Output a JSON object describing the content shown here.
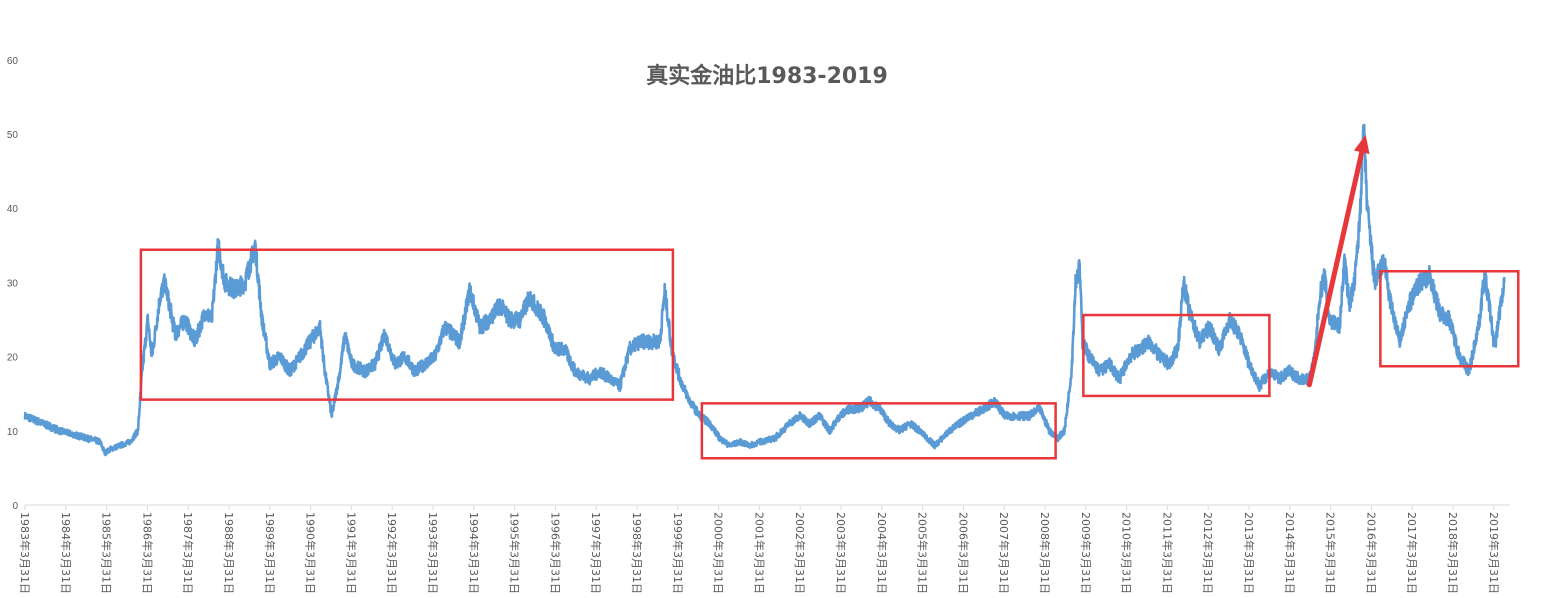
{
  "chart_data": {
    "type": "line",
    "title": "真实金油比1983-2019",
    "xlabel": "",
    "ylabel": "",
    "ylim": [
      0,
      60
    ],
    "yticks": [
      0,
      10,
      20,
      30,
      40,
      50,
      60
    ],
    "xlim": [
      1983.25,
      2019.75
    ],
    "grid": false,
    "legend": "none",
    "xtick_labels": [
      "1983年3月31日",
      "1984年3月31日",
      "1985年3月31日",
      "1986年3月31日",
      "1987年3月31日",
      "1988年3月31日",
      "1989年3月31日",
      "1990年3月31日",
      "1991年3月31日",
      "1992年3月31日",
      "1993年3月31日",
      "1994年3月31日",
      "1995年3月31日",
      "1996年3月31日",
      "1997年3月31日",
      "1998年3月31日",
      "1999年3月31日",
      "2000年3月31日",
      "2001年3月31日",
      "2002年3月31日",
      "2003年3月31日",
      "2004年3月31日",
      "2005年3月31日",
      "2006年3月31日",
      "2007年3月31日",
      "2008年3月31日",
      "2009年3月31日",
      "2010年3月31日",
      "2011年3月31日",
      "2012年3月31日",
      "2013年3月31日",
      "2014年3月31日",
      "2015年3月31日",
      "2016年3月31日",
      "2017年3月31日",
      "2018年3月31日",
      "2019年3月31日"
    ],
    "series": [
      {
        "name": "真实金油比",
        "color": "#5b9bd5",
        "x": [
          1983.25,
          1984.11,
          1985.09,
          1985.21,
          1985.33,
          1985.82,
          1986.02,
          1986.12,
          1986.26,
          1986.36,
          1986.56,
          1986.68,
          1986.93,
          1987.17,
          1987.42,
          1987.66,
          1987.83,
          1987.98,
          1988.15,
          1988.4,
          1988.64,
          1988.89,
          1989.06,
          1989.25,
          1989.5,
          1989.74,
          1989.99,
          1990.23,
          1990.48,
          1990.6,
          1990.77,
          1990.97,
          1991.09,
          1991.26,
          1991.58,
          1991.83,
          1992.07,
          1992.32,
          1992.56,
          1992.81,
          1993.05,
          1993.3,
          1993.54,
          1993.91,
          1994.15,
          1994.4,
          1994.64,
          1994.89,
          1995.13,
          1995.38,
          1995.62,
          1995.99,
          1996.24,
          1996.48,
          1996.73,
          1997.09,
          1997.34,
          1997.58,
          1997.83,
          1998.07,
          1998.32,
          1998.56,
          1998.81,
          1998.93,
          1999.1,
          1999.3,
          1999.54,
          1999.79,
          2000.03,
          2000.28,
          2000.52,
          2000.77,
          2001.01,
          2001.26,
          2001.63,
          2001.99,
          2002.24,
          2002.48,
          2002.73,
          2002.97,
          2003.22,
          2003.46,
          2003.71,
          2003.95,
          2004.2,
          2004.44,
          2004.69,
          2004.93,
          2005.18,
          2005.55,
          2005.91,
          2006.16,
          2006.4,
          2006.77,
          2007.02,
          2007.26,
          2007.51,
          2007.87,
          2008.12,
          2008.36,
          2008.56,
          2008.73,
          2008.9,
          2009.0,
          2009.1,
          2009.17,
          2009.34,
          2009.59,
          2009.83,
          2010.08,
          2010.32,
          2010.57,
          2010.81,
          2011.06,
          2011.3,
          2011.5,
          2011.65,
          2011.79,
          2012.04,
          2012.28,
          2012.53,
          2012.77,
          2013.02,
          2013.26,
          2013.51,
          2013.75,
          2014.0,
          2014.24,
          2014.49,
          2014.73,
          2014.86,
          2014.98,
          2015.1,
          2015.22,
          2015.47,
          2015.59,
          2015.71,
          2015.84,
          2015.96,
          2016.06,
          2016.15,
          2016.33,
          2016.57,
          2016.69,
          2016.94,
          2017.18,
          2017.43,
          2017.67,
          2017.92,
          2018.16,
          2018.41,
          2018.65,
          2018.9,
          2019.02,
          2019.14,
          2019.27,
          2019.39,
          2019.51
        ],
        "values": [
          12,
          10,
          8.5,
          7,
          7.5,
          8.5,
          10,
          18,
          25,
          20,
          28,
          30,
          23,
          25,
          22,
          26,
          25,
          35,
          30,
          29,
          30,
          35,
          25,
          19,
          20,
          18,
          20,
          22,
          24,
          18,
          12,
          18,
          23,
          19,
          18,
          19,
          23,
          19,
          20,
          18,
          19,
          20,
          24,
          22,
          29,
          24,
          25,
          27,
          25,
          25,
          28,
          25,
          21,
          21,
          18,
          17,
          18,
          17,
          16,
          21,
          22,
          22,
          22,
          29,
          21,
          17,
          14,
          12,
          11,
          9,
          8,
          8.5,
          8,
          8.5,
          9,
          11,
          12,
          11,
          12,
          10,
          12,
          13,
          13,
          14,
          13,
          11,
          10,
          11,
          10,
          8,
          10,
          11,
          12,
          13,
          14,
          12,
          12,
          12,
          13,
          10,
          9,
          10,
          18,
          30,
          32,
          22,
          20,
          18,
          19,
          17,
          20,
          21,
          22,
          20,
          19,
          21,
          30,
          26,
          22,
          24,
          21,
          25,
          23,
          19,
          16,
          18,
          17,
          18,
          17,
          17,
          20,
          28,
          31,
          25,
          24,
          33,
          27,
          30,
          38,
          51,
          40,
          30,
          33,
          28,
          22,
          27,
          30,
          31,
          26,
          25,
          20,
          18,
          25,
          31,
          27,
          21,
          26,
          30
        ]
      }
    ],
    "annotations": {
      "color": "#e8373a",
      "boxes": [
        {
          "x": [
            1986.09,
            1999.13
          ],
          "y": [
            14.2,
            34.4
          ]
        },
        {
          "x": [
            1999.84,
            2008.51
          ],
          "y": [
            6.3,
            13.7
          ]
        },
        {
          "x": [
            2009.19,
            2013.75
          ],
          "y": [
            14.7,
            25.6
          ]
        },
        {
          "x": [
            2016.47,
            2019.85
          ],
          "y": [
            18.7,
            31.5
          ]
        }
      ],
      "arrow": {
        "from": [
          2014.73,
          16.2
        ],
        "to": [
          2016.11,
          49.9
        ]
      }
    }
  }
}
